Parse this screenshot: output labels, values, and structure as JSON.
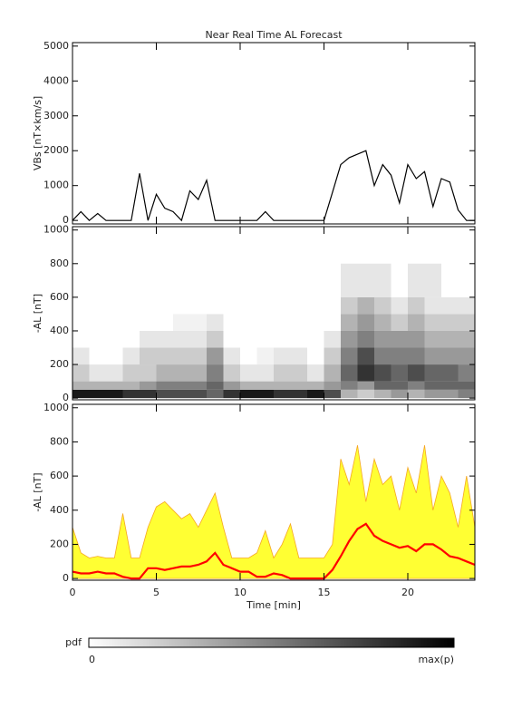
{
  "chart_data": [
    {
      "type": "line",
      "title": "Near Real Time AL Forecast",
      "ylabel": "VBs [nT×km/s]",
      "x": [
        0,
        0.5,
        1,
        1.5,
        2,
        2.5,
        3,
        3.5,
        4,
        4.5,
        5,
        5.5,
        6,
        6.5,
        7,
        7.5,
        8,
        8.5,
        9,
        9.5,
        10,
        10.5,
        11,
        11.5,
        12,
        12.5,
        13,
        13.5,
        14,
        14.5,
        15,
        15.5,
        16,
        16.5,
        17,
        17.5,
        18,
        18.5,
        19,
        19.5,
        20,
        20.5,
        21,
        21.5,
        22,
        22.5,
        23,
        23.5,
        24
      ],
      "series": [
        {
          "color": "#000000",
          "values": [
            0,
            250,
            0,
            200,
            0,
            0,
            0,
            0,
            1350,
            0,
            750,
            350,
            250,
            0,
            850,
            600,
            1150,
            0,
            0,
            0,
            0,
            0,
            0,
            250,
            0,
            0,
            0,
            0,
            0,
            0,
            0,
            800,
            1600,
            1800,
            1900,
            2000,
            1000,
            1600,
            1300,
            500,
            1600,
            1200,
            1400,
            400,
            1200,
            1100,
            300,
            0,
            0
          ]
        }
      ],
      "xlim": [
        0,
        24
      ],
      "ylim": [
        -100,
        5100
      ],
      "yticks": [
        0,
        1000,
        2000,
        3000,
        4000,
        5000
      ]
    },
    {
      "type": "heatmap",
      "ylabel": "-AL [nT]",
      "xbins": [
        0,
        1,
        2,
        3,
        4,
        5,
        6,
        7,
        8,
        9,
        10,
        11,
        12,
        13,
        14,
        15,
        16,
        17,
        18,
        19,
        20,
        21,
        22,
        23,
        24
      ],
      "ybins": [
        0,
        50,
        100,
        200,
        300,
        400,
        500,
        600,
        800
      ],
      "z": [
        [
          0.9,
          0.3,
          0.2,
          0.1,
          0,
          0,
          0,
          0
        ],
        [
          0.9,
          0.3,
          0.1,
          0,
          0,
          0,
          0,
          0
        ],
        [
          0.9,
          0.3,
          0.1,
          0,
          0,
          0,
          0,
          0
        ],
        [
          0.8,
          0.3,
          0.2,
          0.1,
          0,
          0,
          0,
          0
        ],
        [
          0.8,
          0.4,
          0.2,
          0.2,
          0.1,
          0,
          0,
          0
        ],
        [
          0.7,
          0.5,
          0.3,
          0.2,
          0.1,
          0,
          0,
          0
        ],
        [
          0.7,
          0.5,
          0.3,
          0.2,
          0.1,
          0.05,
          0,
          0
        ],
        [
          0.7,
          0.5,
          0.3,
          0.2,
          0.1,
          0.05,
          0,
          0
        ],
        [
          0.6,
          0.6,
          0.5,
          0.4,
          0.2,
          0.1,
          0,
          0
        ],
        [
          0.8,
          0.4,
          0.2,
          0.1,
          0,
          0,
          0,
          0
        ],
        [
          0.9,
          0.3,
          0.1,
          0,
          0,
          0,
          0,
          0
        ],
        [
          0.9,
          0.3,
          0.1,
          0.05,
          0,
          0,
          0,
          0
        ],
        [
          0.8,
          0.3,
          0.2,
          0.1,
          0,
          0,
          0,
          0
        ],
        [
          0.8,
          0.3,
          0.2,
          0.1,
          0,
          0,
          0,
          0
        ],
        [
          0.9,
          0.3,
          0.1,
          0,
          0,
          0,
          0,
          0
        ],
        [
          0.7,
          0.4,
          0.3,
          0.2,
          0.1,
          0,
          0,
          0
        ],
        [
          0.3,
          0.5,
          0.6,
          0.5,
          0.4,
          0.3,
          0.2,
          0.1
        ],
        [
          0.2,
          0.4,
          0.8,
          0.7,
          0.5,
          0.4,
          0.3,
          0.1
        ],
        [
          0.3,
          0.6,
          0.7,
          0.5,
          0.4,
          0.3,
          0.2,
          0.1
        ],
        [
          0.4,
          0.6,
          0.6,
          0.5,
          0.4,
          0.2,
          0.1,
          0
        ],
        [
          0.3,
          0.5,
          0.7,
          0.5,
          0.4,
          0.3,
          0.2,
          0.1
        ],
        [
          0.4,
          0.6,
          0.6,
          0.4,
          0.3,
          0.2,
          0.1,
          0.1
        ],
        [
          0.4,
          0.6,
          0.6,
          0.4,
          0.3,
          0.2,
          0.1,
          0
        ],
        [
          0.5,
          0.6,
          0.5,
          0.4,
          0.3,
          0.2,
          0.1,
          0
        ]
      ],
      "xlim": [
        0,
        24
      ],
      "ylim": [
        -10,
        1020
      ],
      "yticks": [
        0,
        200,
        400,
        600,
        800,
        1000
      ],
      "colorbar": {
        "title": "pdf",
        "ticks": [
          0,
          {
            "value": 1,
            "label": "max(p)"
          }
        ]
      }
    },
    {
      "type": "area",
      "ylabel": "-AL [nT]",
      "xlabel": "Time [min]",
      "x": [
        0,
        0.5,
        1,
        1.5,
        2,
        2.5,
        3,
        3.5,
        4,
        4.5,
        5,
        5.5,
        6,
        6.5,
        7,
        7.5,
        8,
        8.5,
        9,
        9.5,
        10,
        10.5,
        11,
        11.5,
        12,
        12.5,
        13,
        13.5,
        14,
        14.5,
        15,
        15.5,
        16,
        16.5,
        17,
        17.5,
        18,
        18.5,
        19,
        19.5,
        20,
        20.5,
        21,
        21.5,
        22,
        22.5,
        23,
        23.5,
        24
      ],
      "series": [
        {
          "color": "#ff0000",
          "values": [
            40,
            30,
            30,
            40,
            30,
            30,
            10,
            0,
            0,
            60,
            60,
            50,
            60,
            70,
            70,
            80,
            100,
            150,
            80,
            60,
            40,
            40,
            10,
            10,
            30,
            20,
            0,
            0,
            0,
            0,
            0,
            50,
            130,
            220,
            290,
            320,
            250,
            220,
            200,
            180,
            190,
            160,
            200,
            200,
            170,
            130,
            120,
            100,
            80
          ]
        },
        {
          "color": "#f5a623",
          "fill": "#ffff33",
          "values": [
            300,
            150,
            120,
            130,
            120,
            120,
            380,
            120,
            120,
            300,
            420,
            450,
            400,
            350,
            380,
            300,
            400,
            500,
            300,
            120,
            120,
            120,
            150,
            280,
            120,
            200,
            320,
            120,
            120,
            120,
            120,
            200,
            700,
            550,
            780,
            450,
            700,
            550,
            600,
            400,
            650,
            500,
            780,
            400,
            600,
            500,
            300,
            600,
            300
          ]
        }
      ],
      "xlim": [
        0,
        24
      ],
      "ylim": [
        -10,
        1020
      ],
      "yticks": [
        0,
        200,
        400,
        600,
        800,
        1000
      ],
      "xticks": [
        0,
        5,
        10,
        15,
        20
      ]
    }
  ]
}
